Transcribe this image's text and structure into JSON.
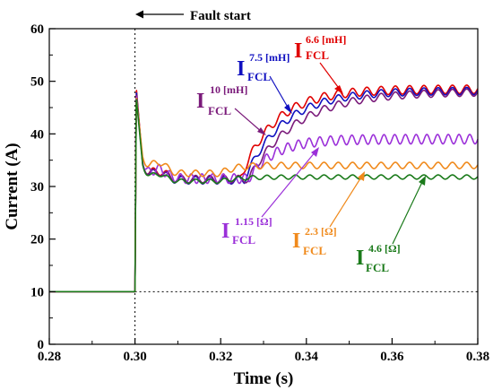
{
  "chart_data": {
    "type": "line",
    "xlabel": "Time (s)",
    "ylabel": "Current (A)",
    "xlim": [
      0.28,
      0.38
    ],
    "ylim": [
      0,
      60
    ],
    "xticks": [
      "0.28",
      "0.30",
      "0.32",
      "0.34",
      "0.36",
      "0.38"
    ],
    "yticks": [
      "0",
      "10",
      "20",
      "30",
      "40",
      "50",
      "60"
    ],
    "grid": false,
    "fault_line": {
      "x": 0.3,
      "label": "Fault start"
    },
    "reference_line": {
      "y": 10
    },
    "colors": {
      "6.6 [mH]": "#e00000",
      "7.5 [mH]": "#1010c0",
      "10 [mH]": "#7a1a7a",
      "1.15 [Ω]": "#9b30d9",
      "2.3 [Ω]": "#f08a1c",
      "4.6 [Ω]": "#1a7a1a"
    },
    "series": [
      {
        "name": "I_FCL 6.6 [mH]",
        "pre_fault": 10,
        "peak": 48.8,
        "dip": 31.3,
        "final": 48.5
      },
      {
        "name": "I_FCL 7.5 [mH]",
        "pre_fault": 10,
        "peak": 48.3,
        "dip": 31.2,
        "final": 48.2
      },
      {
        "name": "I_FCL 10 [mH]",
        "pre_fault": 10,
        "peak": 47.8,
        "dip": 31.4,
        "final": 48.0
      },
      {
        "name": "I_FCL 1.15 [Ω]",
        "pre_fault": 10,
        "peak": 47.5,
        "dip": 31.5,
        "final": 39.0
      },
      {
        "name": "I_FCL 2.3 [Ω]",
        "pre_fault": 10,
        "peak": 47.2,
        "dip": 32.5,
        "final": 34.0
      },
      {
        "name": "I_FCL 4.6 [Ω]",
        "pre_fault": 10,
        "peak": 47.0,
        "dip": 31.0,
        "final": 31.8
      }
    ]
  },
  "annotations": {
    "fault": "Fault start",
    "l66": {
      "main": "I",
      "sup": "6.6 [mH]",
      "sub": "FCL"
    },
    "l75": {
      "main": "I",
      "sup": "7.5 [mH]",
      "sub": "FCL"
    },
    "l10": {
      "main": "I",
      "sup": "10 [mH]",
      "sub": "FCL"
    },
    "r115": {
      "main": "I",
      "sup": "1.15 [Ω]",
      "sub": "FCL"
    },
    "r23": {
      "main": "I",
      "sup": "2.3 [Ω]",
      "sub": "FCL"
    },
    "r46": {
      "main": "I",
      "sup": "4.6 [Ω]",
      "sub": "FCL"
    }
  }
}
